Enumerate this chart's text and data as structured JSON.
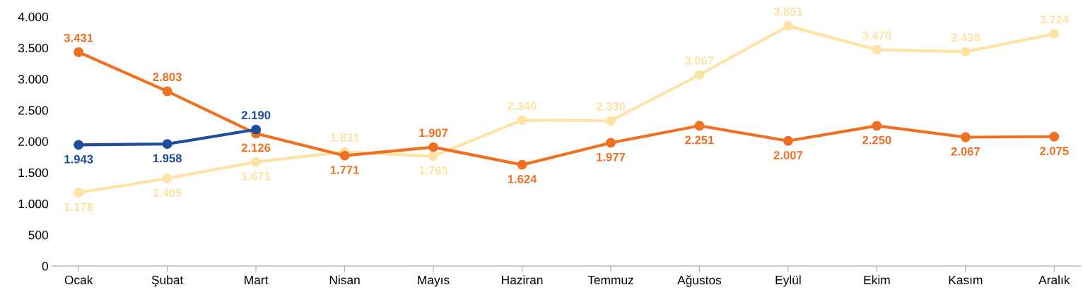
{
  "chart_data": {
    "type": "line",
    "categories": [
      "Ocak",
      "Şubat",
      "Mart",
      "Nisan",
      "Mayıs",
      "Haziran",
      "Temmuz",
      "Ağustos",
      "Eylül",
      "Ekim",
      "Kasım",
      "Aralık"
    ],
    "series": [
      {
        "color": "#fde4a6",
        "values": [
          1178,
          1405,
          1671,
          1831,
          1763,
          2340,
          2330,
          3067,
          3851,
          3470,
          3438,
          3724
        ],
        "value_labels": [
          "1.178",
          "1.405",
          "1.671",
          "1.831",
          "1.763",
          "2.340",
          "2.330",
          "3.067",
          "3.851",
          "3.470",
          "3.438",
          "3.724"
        ]
      },
      {
        "color": "#f07022",
        "values": [
          3431,
          2803,
          2126,
          1771,
          1907,
          1624,
          1977,
          2251,
          2007,
          2250,
          2067,
          2075
        ],
        "value_labels": [
          "3.431",
          "2.803",
          "2.126",
          "1.771",
          "1.907",
          "1.624",
          "1.977",
          "2.251",
          "2.007",
          "2.250",
          "2.067",
          "2.075"
        ]
      },
      {
        "color": "#1f4e9c",
        "values": [
          1943,
          1958,
          2190,
          null,
          null,
          null,
          null,
          null,
          null,
          null,
          null,
          null
        ],
        "value_labels": [
          "1.943",
          "1.958",
          "2.190",
          null,
          null,
          null,
          null,
          null,
          null,
          null,
          null,
          null
        ]
      }
    ],
    "ylim": [
      0,
      4000
    ],
    "yticks": [
      0,
      500,
      {
        "value": 1000,
        "label": "1.000"
      },
      {
        "value": 1500,
        "label": "1.500"
      },
      {
        "value": 2000,
        "label": "2.000"
      },
      {
        "value": 2500,
        "label": "2.500"
      },
      {
        "value": 3000,
        "label": "3.000"
      },
      {
        "value": 3500,
        "label": "3.500"
      },
      {
        "value": 4000,
        "label": "4.000"
      }
    ],
    "marker": "circle",
    "line_style": "solid",
    "grid": false
  }
}
